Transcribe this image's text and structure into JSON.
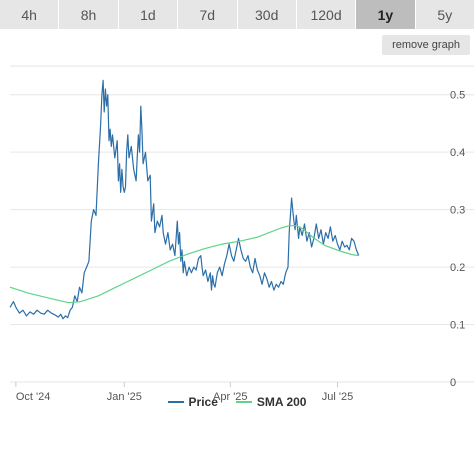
{
  "tabs": [
    {
      "label": "4h",
      "active": false
    },
    {
      "label": "8h",
      "active": false
    },
    {
      "label": "1d",
      "active": false
    },
    {
      "label": "7d",
      "active": false
    },
    {
      "label": "30d",
      "active": false
    },
    {
      "label": "120d",
      "active": false
    },
    {
      "label": "1y",
      "active": true
    },
    {
      "label": "5y",
      "active": false
    }
  ],
  "remove_graph_label": "remove graph",
  "legend": {
    "price_label": "Price",
    "sma_label": "SMA 200"
  },
  "colors": {
    "price": "#2b6ea8",
    "sma": "#5fd38a",
    "grid": "#e6e6e6",
    "axis_text": "#555555"
  },
  "chart_data": {
    "type": "line",
    "x_tick_labels": [
      "Oct '24",
      "Jan '25",
      "Apr '25",
      "Jul '25"
    ],
    "x_tick_days": [
      0,
      92,
      182,
      273
    ],
    "y_ticks": [
      0,
      0.1,
      0.2,
      0.3,
      0.4,
      0.5
    ],
    "y_tick_labels": [
      "0",
      "0.1",
      "0.2",
      "0.3",
      "0.4",
      "0.5"
    ],
    "ylim": [
      0,
      0.55
    ],
    "xlim_days": [
      -5,
      360
    ],
    "grid": true,
    "legend_position": "bottom-center",
    "series": [
      {
        "name": "Price",
        "color": "#2b6ea8",
        "points": [
          [
            -5,
            0.13
          ],
          [
            -2,
            0.14
          ],
          [
            0,
            0.13
          ],
          [
            3,
            0.12
          ],
          [
            6,
            0.125
          ],
          [
            9,
            0.115
          ],
          [
            12,
            0.122
          ],
          [
            15,
            0.118
          ],
          [
            18,
            0.125
          ],
          [
            21,
            0.12
          ],
          [
            24,
            0.118
          ],
          [
            27,
            0.125
          ],
          [
            30,
            0.12
          ],
          [
            33,
            0.117
          ],
          [
            36,
            0.113
          ],
          [
            38,
            0.118
          ],
          [
            40,
            0.11
          ],
          [
            42,
            0.115
          ],
          [
            44,
            0.112
          ],
          [
            46,
            0.125
          ],
          [
            48,
            0.13
          ],
          [
            50,
            0.15
          ],
          [
            52,
            0.14
          ],
          [
            54,
            0.165
          ],
          [
            56,
            0.155
          ],
          [
            58,
            0.19
          ],
          [
            60,
            0.2
          ],
          [
            62,
            0.21
          ],
          [
            64,
            0.28
          ],
          [
            66,
            0.3
          ],
          [
            68,
            0.29
          ],
          [
            70,
            0.38
          ],
          [
            72,
            0.45
          ],
          [
            73,
            0.5
          ],
          [
            74,
            0.525
          ],
          [
            75,
            0.47
          ],
          [
            76,
            0.51
          ],
          [
            77,
            0.48
          ],
          [
            78,
            0.5
          ],
          [
            79,
            0.42
          ],
          [
            80,
            0.44
          ],
          [
            81,
            0.41
          ],
          [
            82,
            0.43
          ],
          [
            84,
            0.39
          ],
          [
            86,
            0.42
          ],
          [
            87,
            0.35
          ],
          [
            88,
            0.38
          ],
          [
            89,
            0.33
          ],
          [
            90,
            0.37
          ],
          [
            91,
            0.34
          ],
          [
            92,
            0.33
          ],
          [
            93,
            0.34
          ],
          [
            94,
            0.4
          ],
          [
            95,
            0.43
          ],
          [
            96,
            0.39
          ],
          [
            98,
            0.41
          ],
          [
            100,
            0.37
          ],
          [
            102,
            0.35
          ],
          [
            103,
            0.39
          ],
          [
            104,
            0.43
          ],
          [
            105,
            0.4
          ],
          [
            106,
            0.48
          ],
          [
            107,
            0.44
          ],
          [
            108,
            0.38
          ],
          [
            110,
            0.4
          ],
          [
            112,
            0.35
          ],
          [
            114,
            0.36
          ],
          [
            115,
            0.28
          ],
          [
            117,
            0.31
          ],
          [
            118,
            0.26
          ],
          [
            120,
            0.28
          ],
          [
            122,
            0.27
          ],
          [
            124,
            0.29
          ],
          [
            125,
            0.26
          ],
          [
            127,
            0.24
          ],
          [
            129,
            0.26
          ],
          [
            131,
            0.23
          ],
          [
            133,
            0.24
          ],
          [
            135,
            0.22
          ],
          [
            136,
            0.25
          ],
          [
            137,
            0.28
          ],
          [
            138,
            0.24
          ],
          [
            139,
            0.26
          ],
          [
            140,
            0.21
          ],
          [
            141,
            0.23
          ],
          [
            142,
            0.19
          ],
          [
            143,
            0.21
          ],
          [
            145,
            0.185
          ],
          [
            147,
            0.2
          ],
          [
            149,
            0.19
          ],
          [
            151,
            0.2
          ],
          [
            153,
            0.195
          ],
          [
            155,
            0.215
          ],
          [
            157,
            0.22
          ],
          [
            158,
            0.2
          ],
          [
            159,
            0.185
          ],
          [
            161,
            0.195
          ],
          [
            163,
            0.175
          ],
          [
            165,
            0.19
          ],
          [
            166,
            0.16
          ],
          [
            167,
            0.185
          ],
          [
            168,
            0.17
          ],
          [
            169,
            0.165
          ],
          [
            171,
            0.19
          ],
          [
            173,
            0.2
          ],
          [
            175,
            0.185
          ],
          [
            177,
            0.205
          ],
          [
            179,
            0.22
          ],
          [
            181,
            0.24
          ],
          [
            183,
            0.22
          ],
          [
            185,
            0.21
          ],
          [
            187,
            0.23
          ],
          [
            189,
            0.25
          ],
          [
            191,
            0.23
          ],
          [
            193,
            0.215
          ],
          [
            195,
            0.21
          ],
          [
            197,
            0.22
          ],
          [
            199,
            0.2
          ],
          [
            201,
            0.19
          ],
          [
            203,
            0.215
          ],
          [
            205,
            0.195
          ],
          [
            207,
            0.185
          ],
          [
            209,
            0.17
          ],
          [
            211,
            0.19
          ],
          [
            213,
            0.18
          ],
          [
            215,
            0.165
          ],
          [
            217,
            0.175
          ],
          [
            219,
            0.16
          ],
          [
            221,
            0.17
          ],
          [
            223,
            0.165
          ],
          [
            225,
            0.175
          ],
          [
            227,
            0.17
          ],
          [
            229,
            0.19
          ],
          [
            231,
            0.2
          ],
          [
            232,
            0.26
          ],
          [
            233,
            0.29
          ],
          [
            234,
            0.32
          ],
          [
            235,
            0.3
          ],
          [
            236,
            0.28
          ],
          [
            237,
            0.265
          ],
          [
            238,
            0.29
          ],
          [
            239,
            0.27
          ],
          [
            240,
            0.25
          ],
          [
            241,
            0.27
          ],
          [
            243,
            0.255
          ],
          [
            245,
            0.275
          ],
          [
            247,
            0.245
          ],
          [
            249,
            0.26
          ],
          [
            251,
            0.235
          ],
          [
            253,
            0.25
          ],
          [
            255,
            0.275
          ],
          [
            257,
            0.25
          ],
          [
            259,
            0.265
          ],
          [
            261,
            0.24
          ],
          [
            263,
            0.26
          ],
          [
            265,
            0.25
          ],
          [
            267,
            0.27
          ],
          [
            269,
            0.245
          ],
          [
            271,
            0.255
          ],
          [
            273,
            0.24
          ],
          [
            275,
            0.23
          ],
          [
            277,
            0.245
          ],
          [
            279,
            0.235
          ],
          [
            281,
            0.238
          ],
          [
            283,
            0.23
          ],
          [
            285,
            0.25
          ],
          [
            287,
            0.245
          ],
          [
            289,
            0.23
          ],
          [
            291,
            0.22
          ]
        ]
      },
      {
        "name": "SMA 200",
        "color": "#5fd38a",
        "points": [
          [
            -5,
            0.165
          ],
          [
            10,
            0.155
          ],
          [
            30,
            0.145
          ],
          [
            45,
            0.138
          ],
          [
            55,
            0.14
          ],
          [
            70,
            0.15
          ],
          [
            85,
            0.165
          ],
          [
            100,
            0.18
          ],
          [
            115,
            0.195
          ],
          [
            130,
            0.21
          ],
          [
            145,
            0.222
          ],
          [
            160,
            0.232
          ],
          [
            175,
            0.24
          ],
          [
            190,
            0.245
          ],
          [
            205,
            0.252
          ],
          [
            215,
            0.26
          ],
          [
            225,
            0.268
          ],
          [
            232,
            0.272
          ],
          [
            238,
            0.272
          ],
          [
            244,
            0.266
          ],
          [
            252,
            0.252
          ],
          [
            262,
            0.238
          ],
          [
            275,
            0.228
          ],
          [
            285,
            0.222
          ],
          [
            291,
            0.22
          ]
        ]
      }
    ]
  }
}
